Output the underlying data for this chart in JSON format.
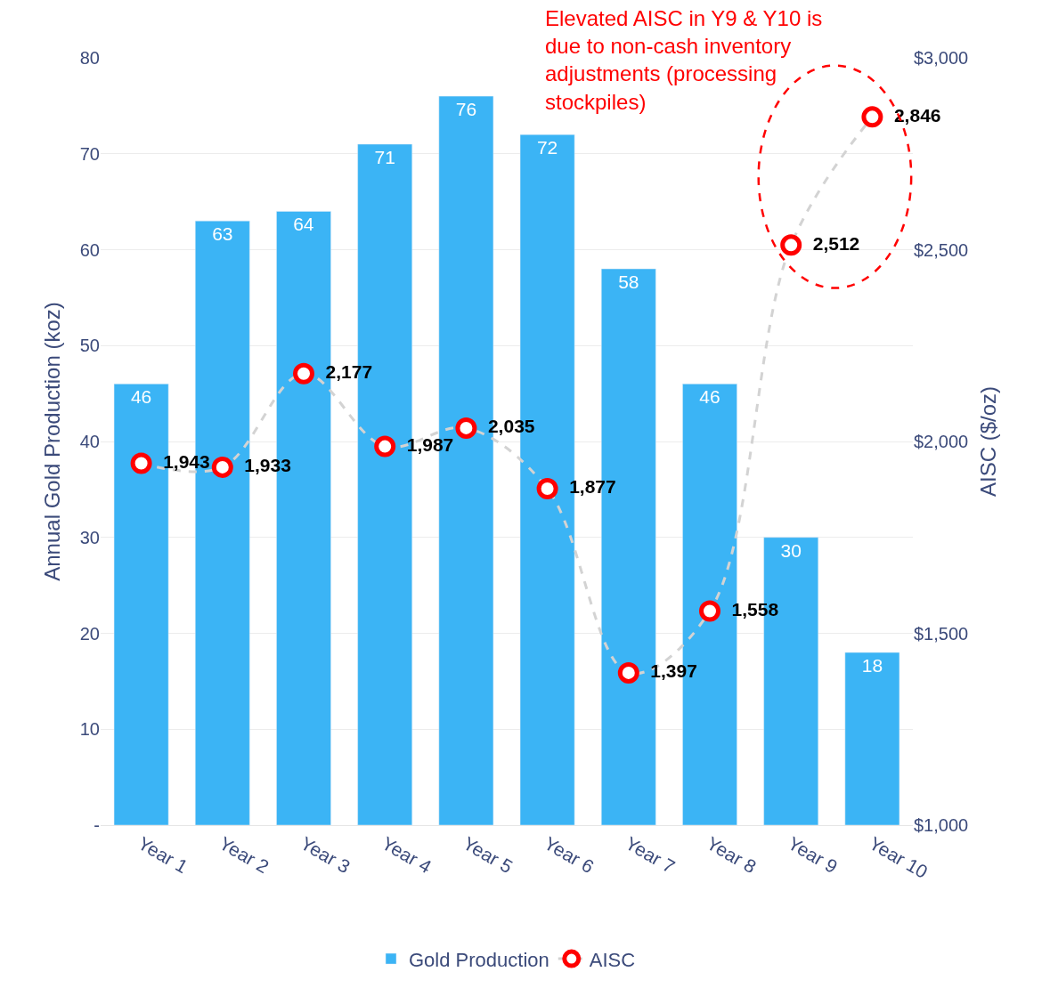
{
  "chart_data": {
    "type": "bar",
    "categories": [
      "Year 1",
      "Year 2",
      "Year 3",
      "Year 4",
      "Year 5",
      "Year 6",
      "Year 7",
      "Year 8",
      "Year 9",
      "Year 10"
    ],
    "series": [
      {
        "name": "Gold Production",
        "color": "#3bb4f5",
        "values": [
          46,
          63,
          64,
          71,
          76,
          72,
          58,
          46,
          30,
          18
        ],
        "value_labels": [
          "46",
          "63",
          "64",
          "71",
          "76",
          "72",
          "58",
          "46",
          "30",
          "18"
        ]
      },
      {
        "name": "AISC",
        "type": "line",
        "axis": "y2",
        "color": "#ff0000",
        "marker": "circle",
        "line_style": "dashed",
        "values": [
          1943,
          1933,
          2177,
          1987,
          2035,
          1877,
          1397,
          1558,
          2512,
          2846
        ],
        "value_labels": [
          "1,943",
          "1,933",
          "2,177",
          "1,987",
          "2,035",
          "1,877",
          "1,397",
          "1,558",
          "2,512",
          "2,846"
        ]
      }
    ],
    "ylabel": "Annual Gold Production (koz)",
    "y2label": "AISC ($/oz)",
    "ylim": [
      0,
      80
    ],
    "yticks": [
      {
        "value": 0,
        "label": "-"
      },
      10,
      20,
      30,
      40,
      50,
      60,
      70,
      80
    ],
    "y2lim": [
      1000,
      3000
    ],
    "y2ticks": [
      {
        "value": 1000,
        "label": "$1,000"
      },
      {
        "value": 1500,
        "label": "$1,500"
      },
      {
        "value": 2000,
        "label": "$2,000"
      },
      {
        "value": 2500,
        "label": "$2,500"
      },
      {
        "value": 3000,
        "label": "$3,000"
      }
    ],
    "grid": "y",
    "legend": "bottom",
    "annotations": [
      "Elevated AISC in Y9 & Y10 is\ndue to non-cash inventory\nadjustments (processing\nstockpiles)"
    ]
  }
}
